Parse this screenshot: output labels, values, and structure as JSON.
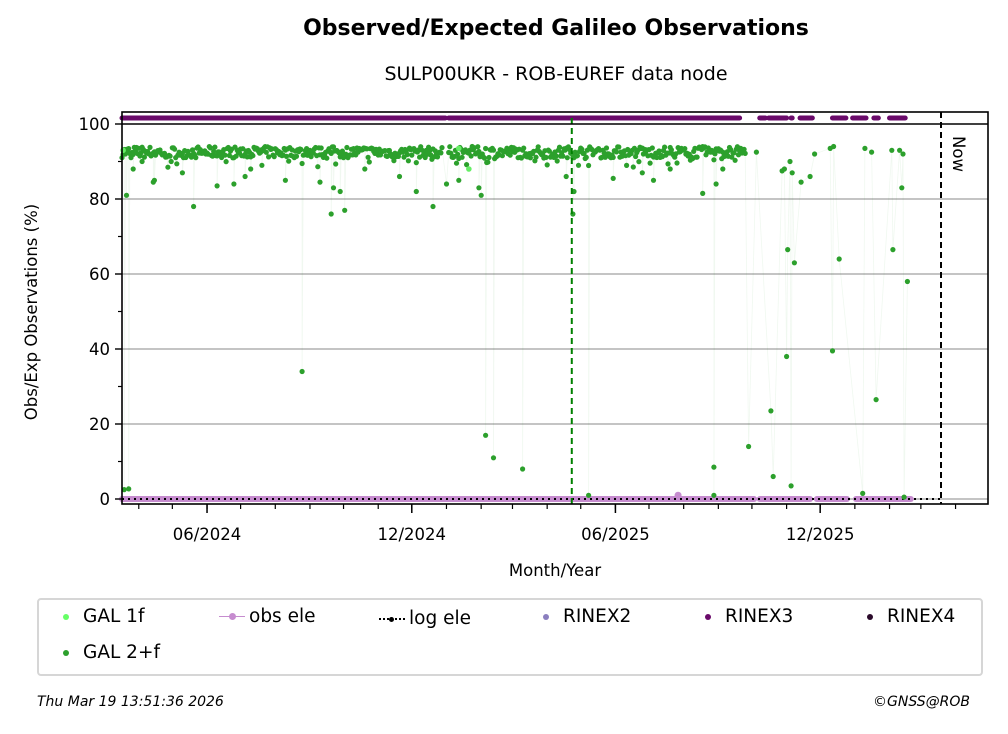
{
  "chart_data": {
    "type": "scatter",
    "title": "Observed/Expected Galileo Observations",
    "subtitle": "SULP00UKR - ROB-EUREF data node",
    "xlabel": "Month/Year",
    "ylabel": "Obs/Exp Observations (%)",
    "xlim": [
      "2024-03-17",
      "2026-04-30"
    ],
    "ylim": [
      -1,
      103
    ],
    "yticks": [
      0,
      20,
      40,
      60,
      80,
      100
    ],
    "xticks": [
      {
        "date": "2024-06-01",
        "label": "06/2024"
      },
      {
        "date": "2024-12-01",
        "label": "12/2024"
      },
      {
        "date": "2025-06-01",
        "label": "06/2025"
      },
      {
        "date": "2025-12-01",
        "label": "12/2025"
      }
    ],
    "grid": "horizontal",
    "annotations": {
      "now_label": "Now",
      "now_date": "2026-03-19",
      "marker_line_date": "2025-04-23"
    },
    "gal_2f": {
      "name": "GAL 2+f",
      "baseline_ranges": [
        {
          "start": "2024-03-17",
          "end": "2025-09-25",
          "level": 92.5,
          "spread": 1.5
        }
      ],
      "points": [
        [
          "2024-03-19",
          2.5
        ],
        [
          "2024-03-23",
          2.7
        ],
        [
          "2024-03-21",
          81
        ],
        [
          "2024-03-27",
          88
        ],
        [
          "2024-04-04",
          90
        ],
        [
          "2024-04-14",
          84.5
        ],
        [
          "2024-04-15",
          85
        ],
        [
          "2024-05-10",
          87
        ],
        [
          "2024-05-20",
          78
        ],
        [
          "2024-06-10",
          83.5
        ],
        [
          "2024-06-25",
          84
        ],
        [
          "2024-07-05",
          86
        ],
        [
          "2024-07-10",
          88
        ],
        [
          "2024-07-20",
          89
        ],
        [
          "2024-08-10",
          85
        ],
        [
          "2024-08-25",
          34
        ],
        [
          "2024-09-10",
          84.5
        ],
        [
          "2024-09-20",
          76
        ],
        [
          "2024-09-22",
          83
        ],
        [
          "2024-09-28",
          82
        ],
        [
          "2024-10-02",
          77
        ],
        [
          "2024-10-20",
          88
        ],
        [
          "2024-11-20",
          86
        ],
        [
          "2024-12-05",
          82
        ],
        [
          "2024-12-20",
          78
        ],
        [
          "2025-01-01",
          84
        ],
        [
          "2025-01-12",
          85
        ],
        [
          "2025-01-30",
          83
        ],
        [
          "2025-02-01",
          81
        ],
        [
          "2025-02-05",
          17
        ],
        [
          "2025-02-12",
          11
        ],
        [
          "2025-03-10",
          8
        ],
        [
          "2025-04-18",
          86
        ],
        [
          "2025-04-25",
          82
        ],
        [
          "2025-04-24",
          76
        ],
        [
          "2025-05-08",
          1
        ],
        [
          "2025-05-30",
          85.5
        ],
        [
          "2025-06-25",
          87
        ],
        [
          "2025-07-05",
          85
        ],
        [
          "2025-07-20",
          88
        ],
        [
          "2025-08-18",
          81.5
        ],
        [
          "2025-08-30",
          84
        ],
        [
          "2025-08-28",
          8.5
        ],
        [
          "2025-08-28",
          1
        ],
        [
          "2025-09-05",
          88
        ],
        [
          "2025-09-28",
          14
        ],
        [
          "2025-10-05",
          92.5
        ],
        [
          "2025-10-18",
          23.5
        ],
        [
          "2025-10-20",
          6
        ],
        [
          "2025-10-28",
          87.5
        ],
        [
          "2025-10-30",
          88
        ],
        [
          "2025-11-01",
          38
        ],
        [
          "2025-11-02",
          66.5
        ],
        [
          "2025-11-04",
          90
        ],
        [
          "2025-11-05",
          3.5
        ],
        [
          "2025-11-06",
          87
        ],
        [
          "2025-11-08",
          63
        ],
        [
          "2025-11-14",
          84.5
        ],
        [
          "2025-11-22",
          86
        ],
        [
          "2025-11-26",
          92
        ],
        [
          "2025-12-10",
          93.5
        ],
        [
          "2025-12-13",
          94
        ],
        [
          "2025-12-12",
          39.5
        ],
        [
          "2025-12-18",
          64
        ],
        [
          "2026-01-08",
          1.5
        ],
        [
          "2026-01-10",
          93.5
        ],
        [
          "2026-01-16",
          92.5
        ],
        [
          "2026-01-20",
          26.5
        ],
        [
          "2026-02-03",
          93
        ],
        [
          "2026-02-04",
          66.5
        ],
        [
          "2026-02-10",
          93
        ],
        [
          "2026-02-12",
          83
        ],
        [
          "2026-02-13",
          92
        ],
        [
          "2026-02-14",
          0.5
        ],
        [
          "2026-02-17",
          58
        ]
      ]
    },
    "gal_1f": {
      "name": "GAL 1f",
      "points": [
        [
          "2025-01-21",
          88
        ],
        [
          "2025-01-12",
          93.5
        ],
        [
          "2024-03-18",
          93
        ]
      ]
    },
    "obs_ele": {
      "name": "obs ele",
      "value": 0,
      "start": "2024-03-17",
      "end": "2026-02-20",
      "gaps": [
        [
          "2025-10-03",
          "2025-10-08"
        ],
        [
          "2025-11-22",
          "2025-11-28"
        ],
        [
          "2025-12-25",
          "2026-01-02"
        ]
      ]
    },
    "log_ele": {
      "name": "log ele",
      "value": 0,
      "start": "2024-03-17",
      "end": "2026-03-19"
    },
    "rinex3": {
      "name": "RINEX3",
      "level": 101.5,
      "ranges": [
        [
          "2024-03-17",
          "2024-12-31"
        ],
        [
          "2025-01-03",
          "2025-09-20"
        ],
        [
          "2025-10-08",
          "2025-10-13"
        ],
        [
          "2025-10-16",
          "2025-11-01"
        ],
        [
          "2025-11-05",
          "2025-11-06"
        ],
        [
          "2025-11-13",
          "2025-11-24"
        ],
        [
          "2025-12-12",
          "2025-12-24"
        ],
        [
          "2025-12-30",
          "2026-01-11"
        ],
        [
          "2026-01-18",
          "2026-01-22"
        ],
        [
          "2026-02-01",
          "2026-02-15"
        ]
      ]
    }
  },
  "legend": {
    "items": [
      {
        "label": "GAL 1f",
        "color": "#66ff66",
        "style": "dot"
      },
      {
        "label": "obs ele",
        "color": "#c68ccf",
        "style": "line-dot"
      },
      {
        "label": "log ele",
        "color": "#000000",
        "style": "dotted-dot"
      },
      {
        "label": "RINEX2",
        "color": "#8b7fbf",
        "style": "dot"
      },
      {
        "label": "RINEX3",
        "color": "#6a0a6a",
        "style": "dot"
      },
      {
        "label": "RINEX4",
        "color": "#2a0a2a",
        "style": "dot"
      },
      {
        "label": "GAL 2+f",
        "color": "#2ca02c",
        "style": "dot"
      }
    ]
  },
  "colors": {
    "gal_2f": "#2ca02c",
    "gal_1f": "#66ee66",
    "obs_ele": "#c68ccf",
    "rinex3": "#6a0a6a",
    "marker_line": "#008000",
    "grid": "#b0b0b0"
  },
  "footer": {
    "timestamp": "Thu Mar 19 13:51:36 2026",
    "copyright": "©GNSS@ROB"
  }
}
